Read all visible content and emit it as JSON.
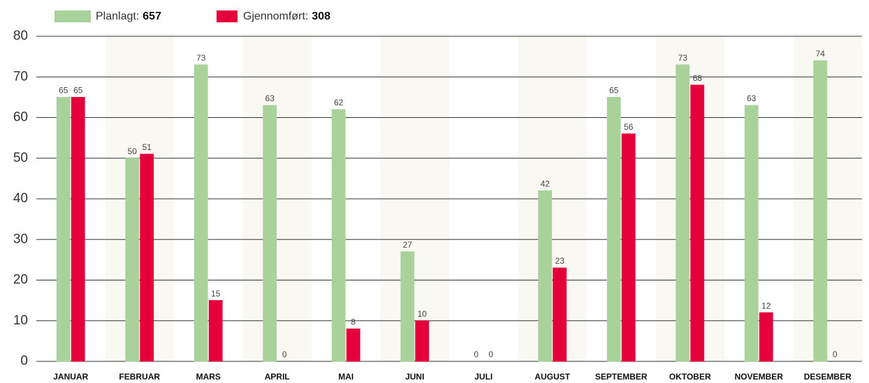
{
  "chart_data": {
    "type": "bar",
    "categories": [
      "JANUAR",
      "FEBRUAR",
      "MARS",
      "APRIL",
      "MAI",
      "JUNI",
      "JULI",
      "AUGUST",
      "SEPTEMBER",
      "OKTOBER",
      "NOVEMBER",
      "DESEMBER"
    ],
    "series": [
      {
        "name": "Planlagt:",
        "total": 657,
        "color": "#a8d29a",
        "values": [
          65,
          50,
          73,
          63,
          62,
          27,
          0,
          42,
          65,
          73,
          63,
          74
        ]
      },
      {
        "name": "Gjennomført:",
        "total": 308,
        "color": "#e4003a",
        "values": [
          65,
          51,
          15,
          0,
          8,
          10,
          0,
          23,
          56,
          68,
          12,
          0
        ]
      }
    ],
    "ylim": [
      0,
      80
    ],
    "yticks": [
      0,
      10,
      20,
      30,
      40,
      50,
      60,
      70,
      80
    ],
    "grid": true,
    "legend": "top-left"
  }
}
